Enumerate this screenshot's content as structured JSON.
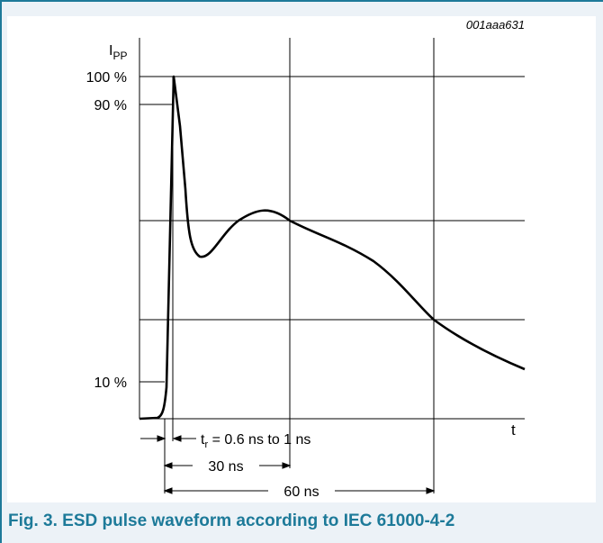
{
  "figure_id": "001aaa631",
  "caption": "Fig. 3. ESD pulse waveform according to IEC 61000-4-2",
  "y_axis": {
    "label_main": "I",
    "label_sub": "PP",
    "ticks": [
      "100 %",
      "90 %",
      "10 %"
    ]
  },
  "x_axis": {
    "label": "t"
  },
  "annotations": {
    "rise_time": {
      "symbol": "t",
      "sub": "r",
      "text": " = 0.6 ns to 1 ns"
    },
    "t30": "30 ns",
    "t60": "60 ns"
  }
}
